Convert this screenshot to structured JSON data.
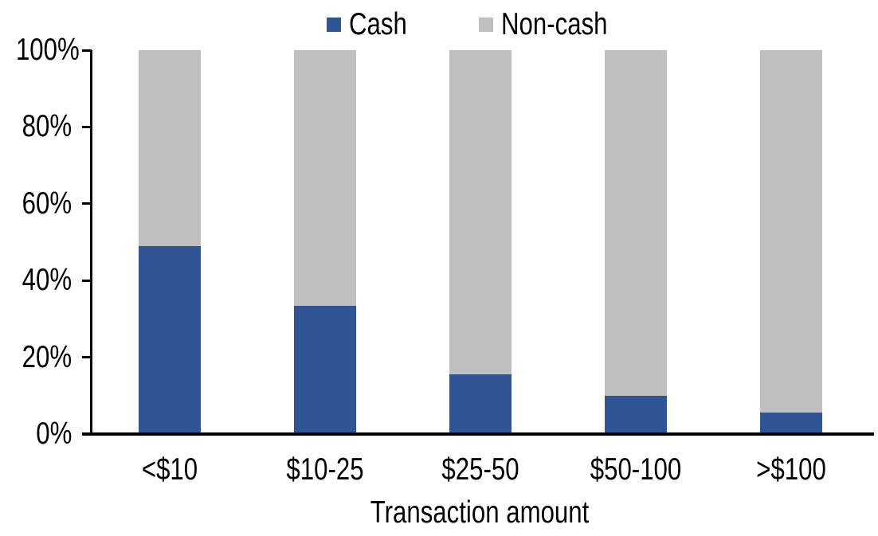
{
  "chart_data": {
    "type": "bar",
    "stacked": true,
    "percent_stacked": true,
    "title": "",
    "xlabel": "Transaction amount",
    "ylabel": "",
    "categories": [
      "<$10",
      "$10-25",
      "$25-50",
      "$50-100",
      ">$100"
    ],
    "series": [
      {
        "name": "Cash",
        "color": "#2F5597",
        "values": [
          49,
          33.5,
          15.5,
          10,
          5.5
        ]
      },
      {
        "name": "Non-cash",
        "color": "#BFBFBF",
        "values": [
          51,
          66.5,
          84.5,
          90,
          94.5
        ]
      }
    ],
    "ylim": [
      0,
      100
    ],
    "ytick_step": 20,
    "ytick_labels": [
      "0%",
      "20%",
      "40%",
      "60%",
      "80%",
      "100%"
    ],
    "legend_position": "top-center",
    "grid": false,
    "axis_color": "#000000",
    "text_color": "#000000"
  }
}
